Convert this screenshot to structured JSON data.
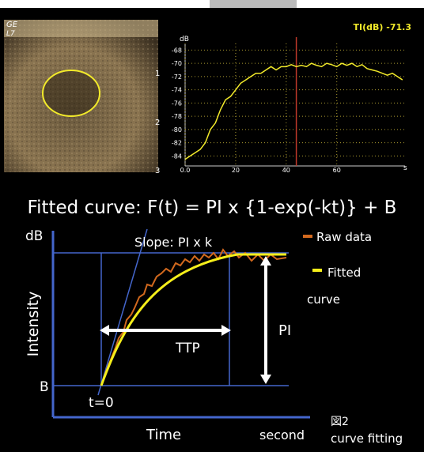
{
  "image": {
    "brand": "GE",
    "probe": "L7",
    "depth_marks": [
      "1",
      "2",
      "3"
    ]
  },
  "chart_data": {
    "type": "line",
    "readout": "TI(dB) -71.3",
    "ylabel": "dB",
    "xlabel": "s",
    "x": [
      0,
      2,
      4,
      6,
      8,
      10,
      12,
      14,
      16,
      18,
      20,
      22,
      24,
      26,
      28,
      30,
      32,
      34,
      36,
      38,
      40,
      42,
      44,
      46,
      48,
      50,
      52,
      54,
      56,
      58,
      60,
      62,
      64,
      66,
      68,
      70,
      72,
      74,
      76,
      78,
      80,
      82,
      84,
      86
    ],
    "series": [
      {
        "color": "#f2ea2a",
        "values": [
          -84.5,
          -84,
          -83.5,
          -83,
          -82,
          -80,
          -79,
          -77,
          -75.5,
          -75,
          -74,
          -73,
          -72.5,
          -72,
          -71.5,
          -71.5,
          -71,
          -70.5,
          -71,
          -70.5,
          -70.5,
          -70.2,
          -70.5,
          -70.3,
          -70.5,
          -70,
          -70.3,
          -70.5,
          -70,
          -70.2,
          -70.5,
          -70,
          -70.3,
          -70,
          -70.5,
          -70.2,
          -70.8,
          -71,
          -71.2,
          -71.5,
          -71.8,
          -71.5,
          -72,
          -72.5
        ]
      }
    ],
    "xlim": [
      0,
      87
    ],
    "ylim": [
      -67,
      -85.5
    ],
    "xticks": [
      {
        "value": 0,
        "label": "0.0"
      },
      20,
      40,
      60
    ],
    "yticks": [
      -68,
      -70,
      -72,
      -74,
      -76,
      -78,
      -80,
      -82,
      -84
    ],
    "grid": true,
    "cursor_x": 44,
    "cursor_color": "#c0392b"
  },
  "diagram": {
    "formula": "Fitted curve: F(t) = PI x {1-exp(-kt)} + B",
    "y_unit": "dB",
    "y_axis": "Intensity",
    "baseline": "B",
    "start": "t=0",
    "x_axis": "Time",
    "x_unit": "second",
    "slope": "Slope: PI x k",
    "ttp": "TTP",
    "pi": "PI",
    "legend": [
      {
        "label": "Raw data",
        "color": "#d2691e"
      },
      {
        "label": "Fitted",
        "label2": "curve",
        "color": "#f5ee1a"
      }
    ]
  },
  "caption": {
    "figure": "図2",
    "text": "curve fitting"
  }
}
